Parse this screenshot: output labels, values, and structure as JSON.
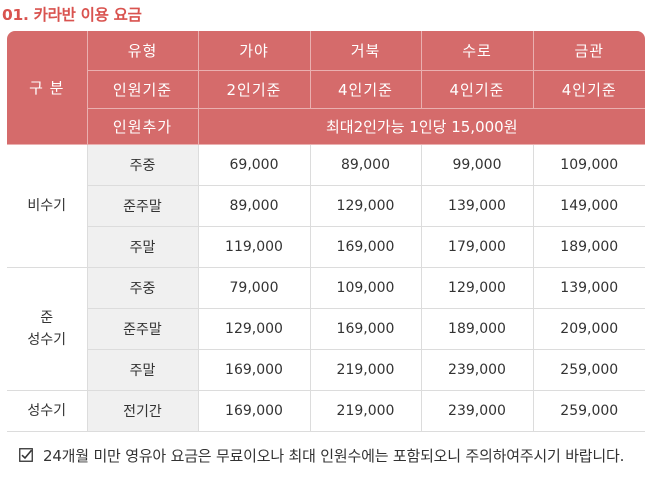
{
  "section_title": "01. 카라반 이용 요금",
  "table": {
    "header": {
      "category_label": "구 분",
      "type_label": "유형",
      "base_label": "인원기준",
      "extra_label": "인원추가",
      "extra_text": "최대2인가능 1인당 15,000원",
      "columns": [
        {
          "name": "가야",
          "base": "2인기준"
        },
        {
          "name": "거북",
          "base": "4인기준"
        },
        {
          "name": "수로",
          "base": "4인기준"
        },
        {
          "name": "금관",
          "base": "4인기준"
        }
      ]
    },
    "groups": [
      {
        "label_lines": [
          "비수기"
        ],
        "rows": [
          {
            "day": "주중",
            "prices": [
              "69,000",
              "89,000",
              "99,000",
              "109,000"
            ]
          },
          {
            "day": "준주말",
            "prices": [
              "89,000",
              "129,000",
              "139,000",
              "149,000"
            ]
          },
          {
            "day": "주말",
            "prices": [
              "119,000",
              "169,000",
              "179,000",
              "189,000"
            ]
          }
        ]
      },
      {
        "label_lines": [
          "준",
          "성수기"
        ],
        "rows": [
          {
            "day": "주중",
            "prices": [
              "79,000",
              "109,000",
              "129,000",
              "139,000"
            ]
          },
          {
            "day": "준주말",
            "prices": [
              "129,000",
              "169,000",
              "189,000",
              "209,000"
            ]
          },
          {
            "day": "주말",
            "prices": [
              "169,000",
              "219,000",
              "239,000",
              "259,000"
            ]
          }
        ]
      },
      {
        "label_lines": [
          "성수기"
        ],
        "rows": [
          {
            "day": "전기간",
            "prices": [
              "169,000",
              "219,000",
              "239,000",
              "259,000"
            ]
          }
        ]
      }
    ]
  },
  "note": {
    "icon": "checkbox-checked-icon",
    "text": "24개월 미만 영유아 요금은 무료이오나 최대 인원수에는 포함되오니 주의하여주시기 바랍니다."
  },
  "colors": {
    "accent": "#d9534f",
    "header_bg": "#d56b6b",
    "day_cell_bg": "#f0f0f0"
  }
}
